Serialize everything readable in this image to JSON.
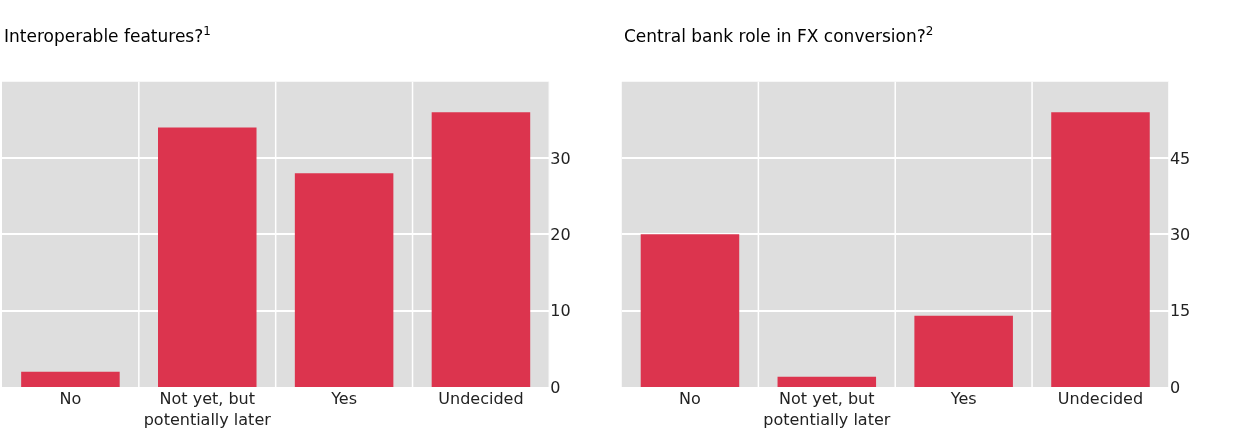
{
  "chart_data": [
    {
      "type": "bar",
      "title": "Interoperable features?$^{1}$",
      "categories": [
        "No",
        "Not yet, but potentially later",
        "Yes",
        "Undecided"
      ],
      "values": [
        2,
        34,
        28,
        36
      ],
      "color": "#dc344e",
      "ylim": [
        0,
        40
      ],
      "yticks": [
        0,
        10,
        20,
        30
      ],
      "grid": true
    },
    {
      "type": "bar",
      "title": "Central bank role in FX conversion?$^{2}$",
      "categories": [
        "No",
        "Not yet, but potentially later",
        "Yes",
        "Undecided"
      ],
      "values": [
        30,
        2,
        14,
        54
      ],
      "color": "#dc344e",
      "ylim": [
        0,
        60
      ],
      "yticks": [
        0,
        15,
        30,
        45
      ],
      "grid": true
    }
  ]
}
